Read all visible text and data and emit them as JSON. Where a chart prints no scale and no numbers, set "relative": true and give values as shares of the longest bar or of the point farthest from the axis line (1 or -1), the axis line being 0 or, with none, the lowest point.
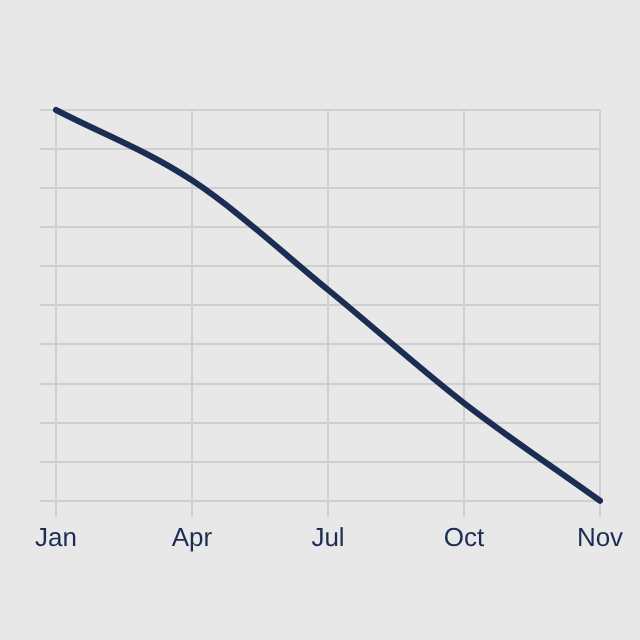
{
  "chart_data": {
    "type": "line",
    "relative": true,
    "categories": [
      "Jan",
      "Apr",
      "Jul",
      "Oct",
      "Nov"
    ],
    "series": [
      {
        "color": "#1b2d52",
        "values": [
          1,
          0.82,
          0.54,
          0.25,
          0
        ]
      }
    ],
    "grid": true,
    "marker": "none",
    "line_style": "solid",
    "legend": false
  }
}
